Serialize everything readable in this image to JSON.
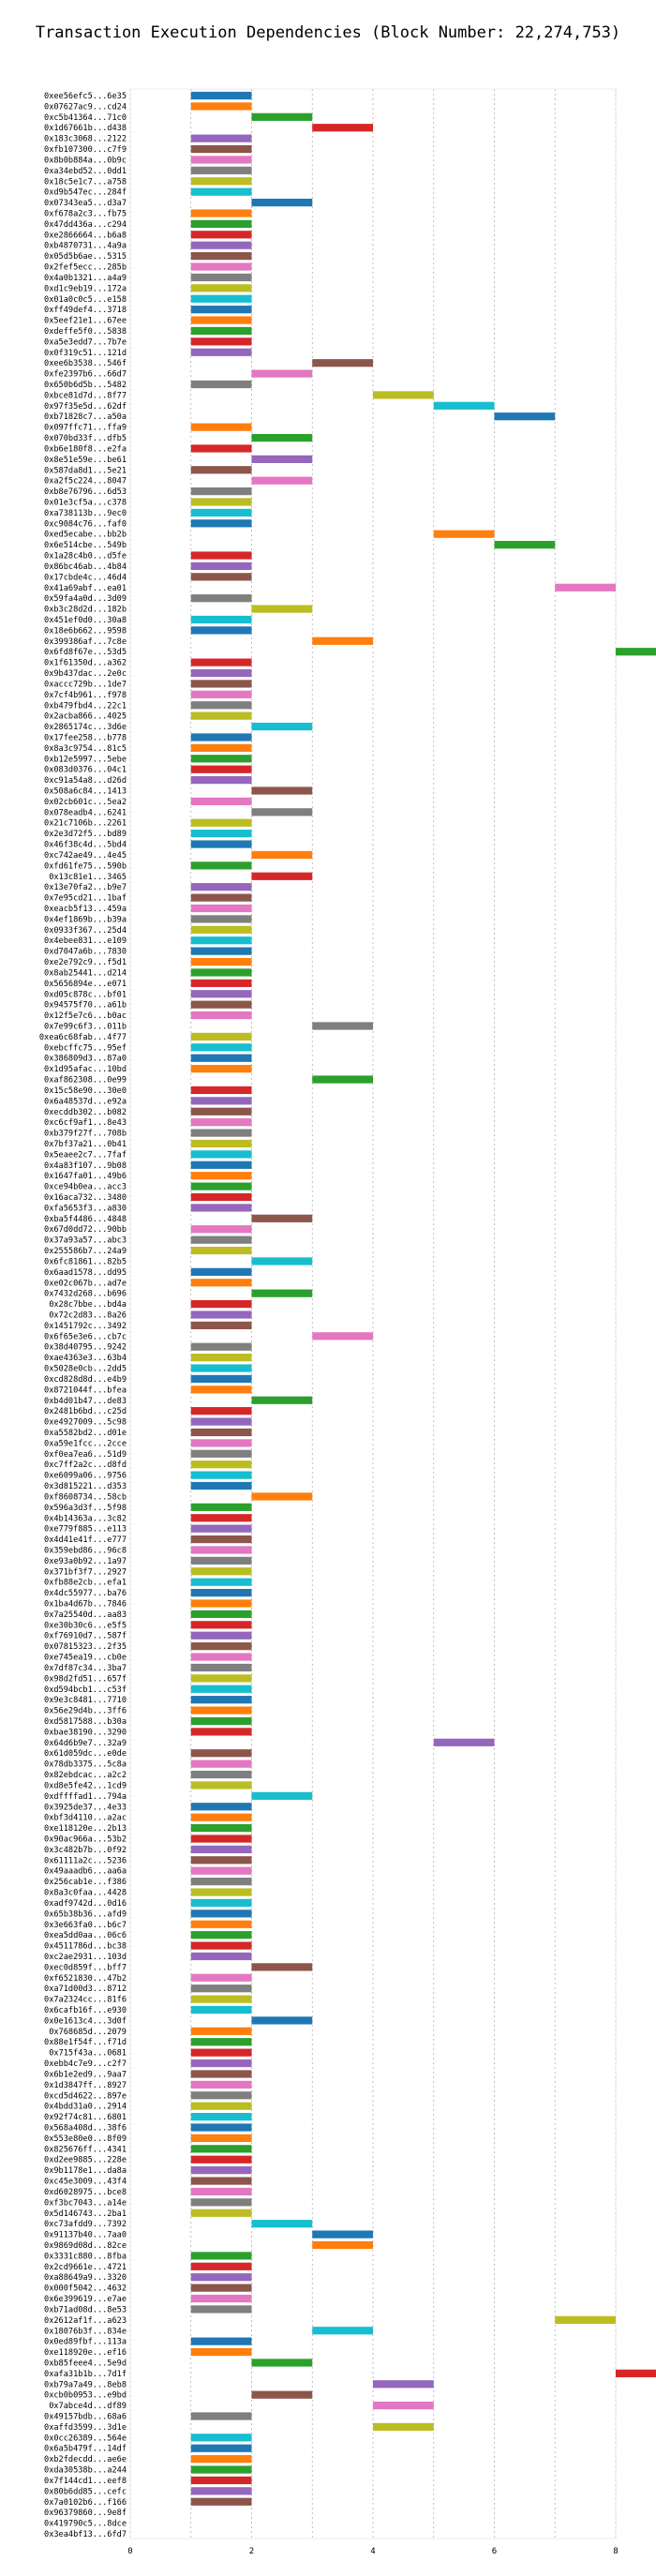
{
  "chart_data": {
    "type": "bar",
    "orientation": "horizontal",
    "title": "Transaction Execution Dependencies (Block Number: 22,274,753)",
    "xlabel": "",
    "ylabel": "",
    "xlim": [
      0,
      8
    ],
    "xticks": [
      0,
      2,
      4,
      6,
      8
    ],
    "grid": true,
    "colors": [
      "#1f77b4",
      "#ff7f0e",
      "#2ca02c",
      "#d62728",
      "#9467bd",
      "#8c564b",
      "#e377c2",
      "#7f7f7f",
      "#bcbd22",
      "#17becf"
    ],
    "categories": [
      "0xee56efc5...6e35",
      "0x07627ac9...cd24",
      "0xc5b41364...71c0",
      "0x1d67661b...d438",
      "0x183c3068...2122",
      "0xfb107300...c7f9",
      "0x8b0b884a...0b9c",
      "0xa34ebd52...0dd1",
      "0x18c5e1c7...a758",
      "0xd9b547ec...284f",
      "0x07343ea5...d3a7",
      "0xf678a2c3...fb75",
      "0x47dd436a...c294",
      "0xe2866664...b6a8",
      "0xb4870731...4a9a",
      "0x05d5b6ae...5315",
      "0x2fef5ecc...285b",
      "0x4a0b1321...a4a9",
      "0xd1c9eb19...172a",
      "0x01a0c0c5...e158",
      "0xff49def4...3718",
      "0x5eef21e1...67ee",
      "0xdeffe5f0...5838",
      "0xa5e3edd7...7b7e",
      "0x0f319c51...121d",
      "0xee6b3538...546f",
      "0xfe2397b6...66d7",
      "0x650b6d5b...5482",
      "0xbce81d7d...8f77",
      "0x97f35e5d...62df",
      "0xb71828c7...a50a",
      "0x097ffc71...ffa9",
      "0x070bd33f...dfb5",
      "0xb6e180f8...e2fa",
      "0x8e51e59e...be61",
      "0x587da8d1...5e21",
      "0xa2f5c224...8047",
      "0xb8e76796...6d53",
      "0x01e3cf5a...c378",
      "0xa738113b...9ec0",
      "0xc9084c76...faf0",
      "0xed5ecabe...bb2b",
      "0x6e514cbe...549b",
      "0x1a28c4b0...d5fe",
      "0x86bc46ab...4b84",
      "0x17cbde4c...46d4",
      "0x41a69abf...ea01",
      "0x59fa4a0d...3d09",
      "0xb3c28d2d...182b",
      "0x451ef0d0...30a8",
      "0x18e6b662...9598",
      "0x399386af...7c8e",
      "0x6fd8f67e...53d5",
      "0x1f61350d...a362",
      "0x9b437dac...2e0c",
      "0xaccc729b...1de7",
      "0x7cf4b961...f978",
      "0xb479fbd4...22c1",
      "0x2acba866...4025",
      "0x2865174c...3d6e",
      "0x17fee258...b778",
      "0x8a3c9754...81c5",
      "0xb12e5997...5ebe",
      "0x083d0376...04c1",
      "0xc91a54a8...d26d",
      "0x508a6c84...1413",
      "0x02cb601c...5ea2",
      "0x078eadb4...6241",
      "0x21c7106b...2261",
      "0x2e3d72f5...bd89",
      "0x46f38c4d...5bd4",
      "0xc742ae49...4e45",
      "0xfd61fe75...590b",
      "0x13c81e1...3465",
      "0x13e70fa2...b9e7",
      "0x7e95cd21...1baf",
      "0xeacb5f13...459a",
      "0x4ef1869b...b39a",
      "0x0933f367...25d4",
      "0x4ebee831...e109",
      "0xd7047a6b...7830",
      "0xe2e792c9...f5d1",
      "0x8ab25441...d214",
      "0x5656894e...e071",
      "0xd05c878c...bf01",
      "0x94575f70...a61b",
      "0x12f5e7c6...b0ac",
      "0x7e99c6f3...011b",
      "0xea6c68fab...4f77",
      "0xebcffc75...95ef",
      "0x386809d3...87a0",
      "0x1d95afac...10bd",
      "0xaf862308...0e99",
      "0x15c58e90...30e0",
      "0x6a48537d...e92a",
      "0xecddb302...b082",
      "0xc6cf9af1...8e43",
      "0xb379f27f...708b",
      "0x7bf37a21...0b41",
      "0x5eaee2c7...7faf",
      "0x4a83f107...9b08",
      "0x1647fa01...49b6",
      "0xce94b0ea...acc3",
      "0x16aca732...3480",
      "0xfa5653f3...a830",
      "0xba5f4486...4848",
      "0x67d0dd72...90bb",
      "0x37a93a57...abc3",
      "0x255586b7...24a9",
      "0x6fc81861...82b5",
      "0x6aad1578...dd95",
      "0xe02c067b...ad7e",
      "0x7432d268...b696",
      "0x28c7bbe...bd4a",
      "0x72c2d83...8a26",
      "0x1451792c...3492",
      "0x6f65e3e6...cb7c",
      "0x38d40795...9242",
      "0xae4363e3...63b4",
      "0x5028e0cb...2dd5",
      "0xcd828d8d...e4b9",
      "0x8721044f...bfea",
      "0xb4d01b47...de83",
      "0x2481b6bd...c25d",
      "0xe4927009...5c98",
      "0xa5582bd2...d01e",
      "0xa59e1fcc...2cce",
      "0xf0ea7ea6...51d9",
      "0xc7ff2a2c...d8fd",
      "0xe6099a06...9756",
      "0x3d815221...d353",
      "0xf8608734...58cb",
      "0x596a3d3f...5f98",
      "0x4b14363a...3c82",
      "0xe779f885...e113",
      "0x4d41e41f...e777",
      "0x359ebd86...96c8",
      "0xe93a0b92...1a97",
      "0x371bf3f7...2927",
      "0xfb88e2cb...efa1",
      "0x4dc55977...ba76",
      "0x1ba4d67b...7846",
      "0x7a25540d...aa83",
      "0xe30b30c6...e5f5",
      "0xf76910d7...587f",
      "0x07815323...2f35",
      "0xe745ea19...cb0e",
      "0x7df87c34...3ba7",
      "0x98d2fd51...657f",
      "0xd594bcb1...c53f",
      "0x9e3c8481...7710",
      "0x56e29d4b...3ff6",
      "0xd5817588...b30a",
      "0xbae38190...3290",
      "0x64d6b9e7...32a9",
      "0x61d059dc...e0de",
      "0x78db3375...5c8a",
      "0x82ebdcac...a2c2",
      "0xd8e5fe42...1cd9",
      "0xdffffad1...794a",
      "0x3925de37...4e33",
      "0xbf3d4110...a2ac",
      "0xe118120e...2b13",
      "0x90ac966a...53b2",
      "0x3c482b7b...0f92",
      "0x61111a2c...5236",
      "0x49aaadb6...aa6a",
      "0x256cab1e...f386",
      "0x8a3c0faa...4428",
      "0xadf9742d...0d16",
      "0x65b38b36...afd9",
      "0x3e663fa0...b6c7",
      "0xea5dd0aa...06c6",
      "0x4511786d...bc38",
      "0xc2ae2931...103d",
      "0xec0d859f...bff7",
      "0xf6521830...47b2",
      "0xa71d00d3...8712",
      "0x7a2324cc...81f6",
      "0x6cafb16f...e930",
      "0x0e1613c4...3d0f",
      "0x768685d...2079",
      "0x88e1f54f...f71d",
      "0x715f43a...0681",
      "0xebb4c7e9...c2f7",
      "0x6b1e2ed9...9aa7",
      "0x1d3847ff...8927",
      "0xcd5d4622...897e",
      "0x4bdd31a0...2914",
      "0x92f74c81...6801",
      "0x568a408d...38f6",
      "0x553e80e0...8f09",
      "0x825676ff...4341",
      "0xd2ee9885...228e",
      "0x9b1178e1...da8a",
      "0xc45e3009...43f4",
      "0xd6028975...bce8",
      "0xf3bc7043...a14e",
      "0x5d146743...2ba1",
      "0xc73afdd9...7392",
      "0x91137b40...7aa0",
      "0x9869d08d...82ce",
      "0x3331c880...8fba",
      "0x2cd9661e...4721",
      "0xa88649a9...3320",
      "0x000f5042...4632",
      "0x6e399619...e7ae",
      "0xb71ad08d...8e53",
      "0x2612af1f...a623",
      "0x18076b3f...834e",
      "0x0ed89fbf...113a",
      "0xe118920e...ef16",
      "0xb85feee4...5e9d",
      "0xafa31b1b...7d1f",
      "0xb79a7a49...8eb8",
      "0xcb0b0953...e9bd",
      "0x7abce4d...df89",
      "0x49157bdb...68a6",
      "0xaffd3599...3d1e",
      "0x0cc26389...564e",
      "0x6a5b479f...14df",
      "0xb2fdecdd...ae6e",
      "0xda30538b...a244",
      "0x7f144cd1...eef8",
      "0x80b6dd85...cefc",
      "0x7a0102b6...f166",
      "0x96379860...9e8f",
      "0x419790c5...8dce",
      "0x3ea4bf13...6fd7"
    ],
    "series": [
      {
        "start": [
          1,
          1,
          2,
          3,
          1,
          1,
          1,
          1,
          1,
          1,
          2,
          1,
          1,
          1,
          1,
          1,
          1,
          1,
          1,
          1,
          1,
          1,
          1,
          1,
          1,
          3,
          2,
          1,
          4,
          5,
          6,
          1,
          2,
          1,
          2,
          1,
          2,
          1,
          1,
          1,
          1,
          5,
          6,
          1,
          1,
          1,
          7,
          1,
          2,
          1,
          1,
          3,
          8,
          1,
          1,
          1,
          1,
          1,
          1,
          2,
          1,
          1,
          1,
          1,
          1,
          2,
          1,
          2,
          1,
          1,
          1,
          2,
          1,
          2,
          1,
          1,
          1,
          1,
          1,
          1,
          1,
          1,
          1,
          1,
          1,
          1,
          1,
          3,
          1,
          1,
          1,
          1,
          3,
          1,
          1,
          1,
          1,
          1,
          1,
          1,
          1,
          1,
          1,
          1,
          1,
          2,
          1,
          1,
          1,
          2,
          1,
          1,
          2,
          1,
          1,
          1,
          3,
          1,
          1,
          1,
          1,
          1,
          2,
          1,
          1,
          1,
          1,
          1,
          1,
          1,
          1,
          2,
          1,
          1,
          1,
          1,
          1,
          1,
          1,
          1,
          1,
          1,
          1,
          1,
          1,
          1,
          1,
          1,
          1,
          1,
          1,
          1,
          1,
          1,
          5,
          1,
          1,
          1,
          1,
          2,
          1,
          1,
          1,
          1,
          1,
          1,
          1,
          1,
          1,
          1,
          1,
          1,
          1,
          1,
          1,
          2,
          1,
          1,
          1,
          1,
          2,
          1,
          1,
          1,
          1,
          1,
          1,
          1,
          1,
          1,
          1,
          1,
          1,
          1,
          1,
          1,
          1,
          1,
          1,
          2,
          3,
          3,
          1,
          1,
          1,
          1,
          1,
          1,
          7,
          3,
          1,
          1,
          2,
          8,
          4,
          2,
          4,
          1,
          4,
          1,
          1,
          1,
          1,
          1,
          1,
          1
        ],
        "duration": 1,
        "color_index": [
          0,
          1,
          2,
          3,
          4,
          5,
          6,
          7,
          8,
          9,
          0,
          1,
          2,
          3,
          4,
          5,
          6,
          7,
          8,
          9,
          0,
          1,
          2,
          3,
          4,
          5,
          6,
          7,
          8,
          9,
          0,
          1,
          2,
          3,
          4,
          5,
          6,
          7,
          8,
          9,
          0,
          1,
          2,
          3,
          4,
          5,
          6,
          7,
          8,
          9,
          0,
          1,
          2,
          3,
          4,
          5,
          6,
          7,
          8,
          9,
          0,
          1,
          2,
          3,
          4,
          5,
          6,
          7,
          8,
          9,
          0,
          1,
          2,
          3,
          4,
          5,
          6,
          7,
          8,
          9,
          0,
          1,
          2,
          3,
          4,
          5,
          6,
          7,
          8,
          9,
          0,
          1,
          2,
          3,
          4,
          5,
          6,
          7,
          8,
          9,
          0,
          1,
          2,
          3,
          4,
          5,
          6,
          7,
          8,
          9,
          0,
          1,
          2,
          3,
          4,
          5,
          6,
          7,
          8,
          9,
          0,
          1,
          2,
          3,
          4,
          5,
          6,
          7,
          8,
          9,
          0,
          1,
          2,
          3,
          4,
          5,
          6,
          7,
          8,
          9,
          0,
          1,
          2,
          3,
          4,
          5,
          6,
          7,
          8,
          9,
          0,
          1,
          2,
          3,
          4,
          5,
          6,
          7,
          8,
          9,
          0,
          1,
          2,
          3,
          4,
          5,
          6,
          7,
          8,
          9,
          0,
          1,
          2,
          3,
          4,
          5,
          6,
          7,
          8,
          9,
          0,
          1,
          2,
          3,
          4,
          5,
          6,
          7,
          8,
          9,
          0,
          1,
          2,
          3,
          4,
          5,
          6,
          7,
          8,
          9,
          0,
          1,
          2,
          3,
          4,
          5,
          6,
          7,
          8,
          9,
          0,
          1,
          2,
          3,
          4,
          5,
          6,
          7,
          8,
          9,
          0,
          1,
          2,
          3,
          4,
          5,
          6,
          7,
          8,
          9
        ]
      }
    ]
  }
}
